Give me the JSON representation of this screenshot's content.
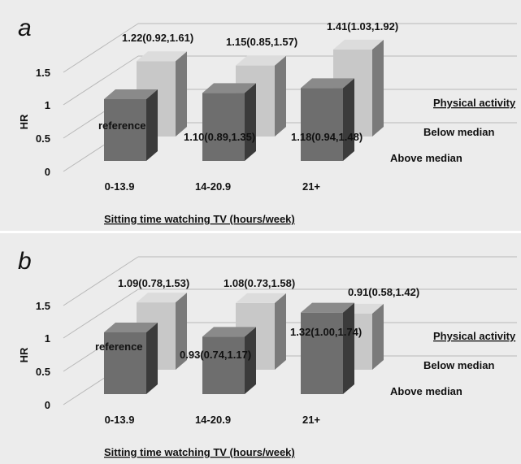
{
  "chart_data": [
    {
      "type": "bar",
      "panel_label": "a",
      "ylabel": "HR",
      "xlabel": "Sitting time watching TV (hours/week)",
      "legend_title": "Physical activity",
      "categories": [
        "0-13.9",
        "14-20.9",
        "21+"
      ],
      "yticks": [
        "0",
        "0.5",
        "1",
        "1.5"
      ],
      "ylim": [
        0,
        1.75
      ],
      "grid": true,
      "series": [
        {
          "name": "Below median",
          "values": [
            1.22,
            1.15,
            1.41
          ],
          "labels": [
            "1.22(0.92,1.61)",
            "1.15(0.85,1.57)",
            "1.41(1.03,1.92)"
          ]
        },
        {
          "name": "Above median",
          "values": [
            1.0,
            1.1,
            1.18
          ],
          "labels": [
            "reference",
            "1.10(0.89,1.35)",
            "1.18(0.94,1.48)"
          ]
        }
      ]
    },
    {
      "type": "bar",
      "panel_label": "b",
      "ylabel": "HR",
      "xlabel": "Sitting time watching TV (hours/week)",
      "legend_title": "Physical activity",
      "categories": [
        "0-13.9",
        "14-20.9",
        "21+"
      ],
      "yticks": [
        "0",
        "0.5",
        "1",
        "1.5"
      ],
      "ylim": [
        0,
        1.75
      ],
      "grid": true,
      "series": [
        {
          "name": "Below median",
          "values": [
            1.09,
            1.08,
            0.91
          ],
          "labels": [
            "1.09(0.78,1.53)",
            "1.08(0.73,1.58)",
            "0.91(0.58,1.42)"
          ]
        },
        {
          "name": "Above median",
          "values": [
            1.0,
            0.93,
            1.32
          ],
          "labels": [
            "reference",
            "0.93(0.74,1.17)",
            "1.32(1.00,1.74)"
          ]
        }
      ]
    }
  ],
  "colors": {
    "background": "#ececec",
    "front_bar": "#6e6e6e",
    "front_bar_side": "#3b3b3b",
    "front_bar_top": "#8a8a8a",
    "back_bar": "#c8c8c8",
    "back_bar_side": "#7a7a7a",
    "back_bar_top": "#dcdcdc",
    "grid": "#b8b8b8"
  }
}
